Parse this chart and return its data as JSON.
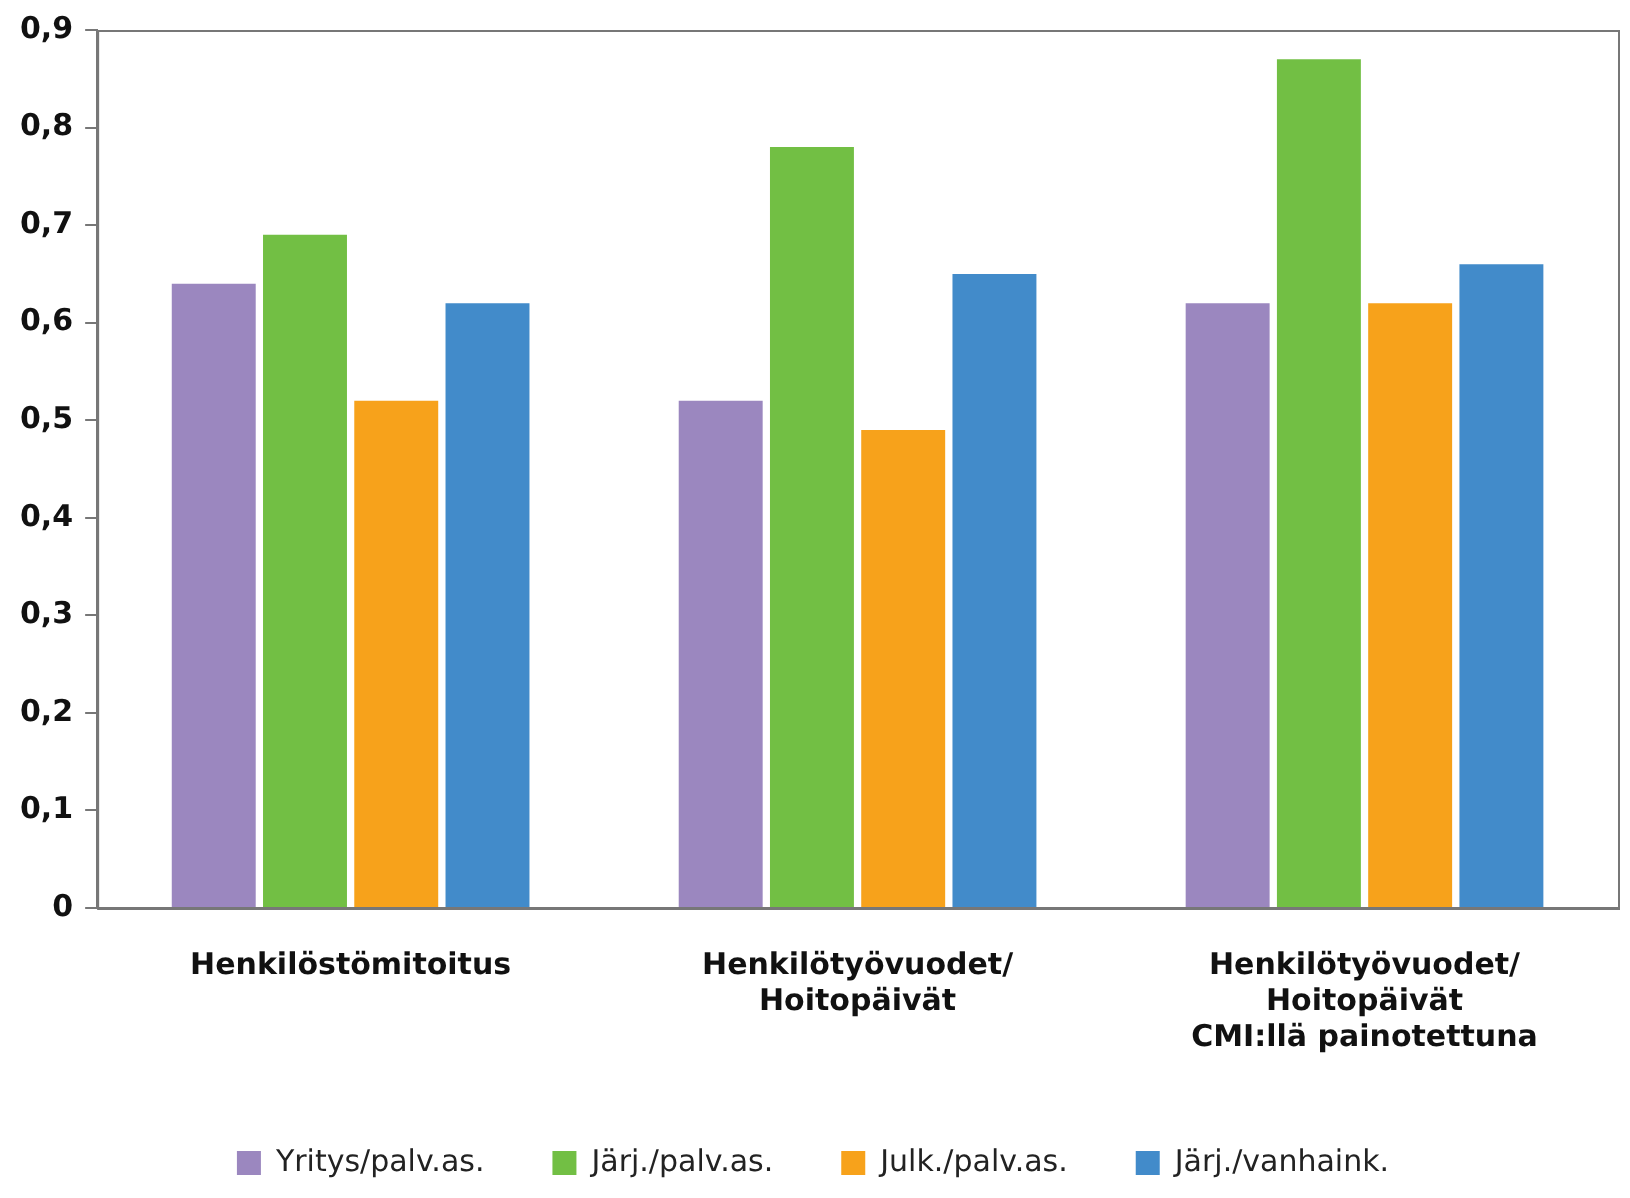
{
  "chart_data": {
    "type": "bar",
    "categories": [
      "Henkilöstömitoitus",
      "Henkilötyövuodet/\nHoitopäivät",
      "Henkilötyövuodet/\nHoitopäivät\nCMI:llä painotettuna"
    ],
    "series": [
      {
        "name": "Yritys/palv.as.",
        "color": "#9b87bf",
        "values": [
          0.64,
          0.52,
          0.62
        ]
      },
      {
        "name": "Järj./palv.as.",
        "color": "#72bf44",
        "values": [
          0.69,
          0.78,
          0.87
        ]
      },
      {
        "name": "Julk./palv.as.",
        "color": "#f7a21b",
        "values": [
          0.52,
          0.49,
          0.62
        ]
      },
      {
        "name": "Järj./vanhaink.",
        "color": "#428bca",
        "values": [
          0.62,
          0.65,
          0.66
        ]
      }
    ],
    "ylim": [
      0,
      0.9
    ],
    "yticks": [
      0,
      {
        "value": 0.1,
        "label": "0,1"
      },
      {
        "value": 0.2,
        "label": "0,2"
      },
      {
        "value": 0.3,
        "label": "0,3"
      },
      {
        "value": 0.4,
        "label": "0,4"
      },
      {
        "value": 0.5,
        "label": "0,5"
      },
      {
        "value": 0.6,
        "label": "0,6"
      },
      {
        "value": 0.7,
        "label": "0,7"
      },
      {
        "value": 0.8,
        "label": "0,8"
      },
      {
        "value": 0.9,
        "label": "0,9"
      }
    ],
    "grid": false,
    "legend": "bottom"
  }
}
